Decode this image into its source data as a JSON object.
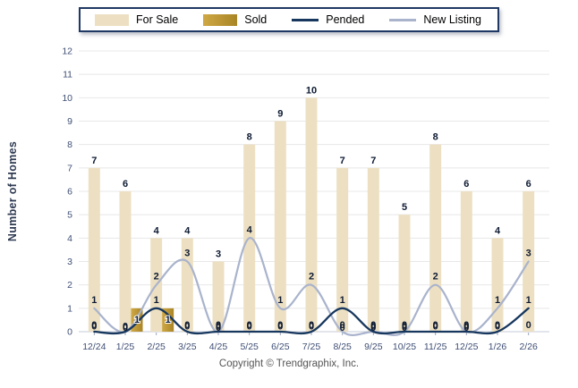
{
  "legend": {
    "items": [
      {
        "id": "for-sale",
        "label": "For Sale",
        "swatch": "bar",
        "color": "#EDE0C2"
      },
      {
        "id": "sold",
        "label": "Sold",
        "swatch": "bar",
        "color": "#BE9530"
      },
      {
        "id": "pended",
        "label": "Pended",
        "swatch": "line",
        "color": "#17375E"
      },
      {
        "id": "new-listing",
        "label": "New Listing",
        "swatch": "line",
        "color": "#A9B3CC"
      }
    ]
  },
  "y_axis": {
    "title": "Number of Homes"
  },
  "footer": {
    "copyright": "Copyright © Trendgraphix, Inc."
  },
  "colors": {
    "for_sale": "#EDE0C2",
    "sold": "#BE9530",
    "sold_light": "#CFA845",
    "sold_dark": "#A98526",
    "pended": "#17375E",
    "new_listing": "#A9B3CC",
    "grid": "#E8E8E8",
    "axis_line": "#C4CBD8",
    "tick_text": "#3E4E74",
    "label_text": "#0E1B33"
  },
  "chart_data": {
    "type": "bar",
    "subtype": "combo bar+line",
    "title": "",
    "xlabel": "",
    "ylabel": "Number of Homes",
    "ylim": [
      0,
      12
    ],
    "yticks": [
      0,
      1,
      2,
      3,
      4,
      5,
      6,
      7,
      8,
      9,
      10,
      11,
      12
    ],
    "grid": true,
    "legend_position": "top",
    "data_labels": true,
    "categories": [
      "12/24",
      "1/25",
      "2/25",
      "3/25",
      "4/25",
      "5/25",
      "6/25",
      "7/25",
      "8/25",
      "9/25",
      "10/25",
      "11/25",
      "12/25",
      "1/26",
      "2/26"
    ],
    "series": [
      {
        "name": "For Sale",
        "type": "bar",
        "color": "#EDE0C2",
        "values": [
          7,
          6,
          4,
          4,
          3,
          8,
          9,
          10,
          7,
          7,
          5,
          8,
          6,
          4,
          6
        ]
      },
      {
        "name": "Sold",
        "type": "bar",
        "color": "#BE9530",
        "values": [
          0,
          1,
          1,
          0,
          0,
          0,
          0,
          0,
          0,
          0,
          0,
          0,
          0,
          0,
          0
        ]
      },
      {
        "name": "Pended",
        "type": "line",
        "color": "#17375E",
        "values": [
          0,
          0,
          1,
          0,
          0,
          0,
          0,
          0,
          1,
          0,
          0,
          0,
          0,
          0,
          1
        ]
      },
      {
        "name": "New Listing",
        "type": "line",
        "color": "#A9B3CC",
        "values": [
          1,
          0,
          2,
          3,
          0,
          4,
          1,
          2,
          0,
          0,
          0,
          2,
          0,
          1,
          3
        ]
      }
    ]
  }
}
